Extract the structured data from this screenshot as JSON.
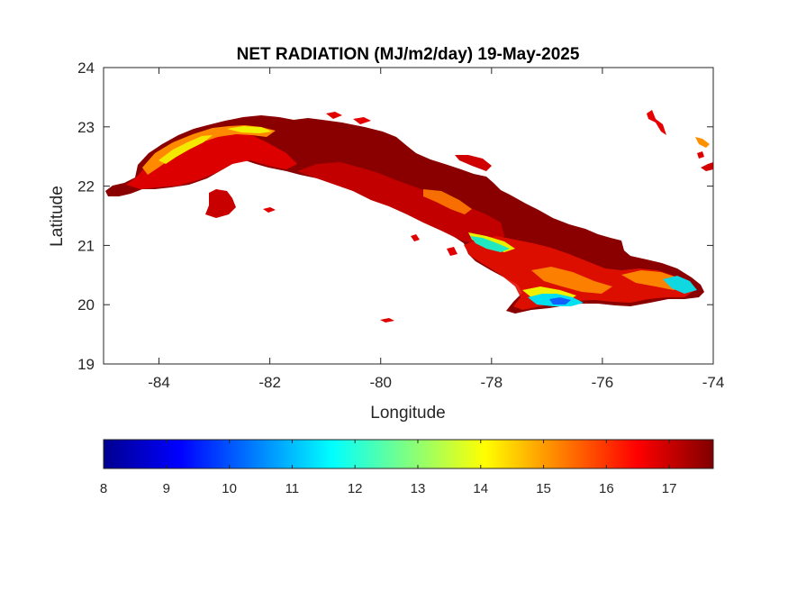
{
  "title": "NET RADIATION (MJ/m2/day) 19-May-2025",
  "x_axis": {
    "label": "Longitude",
    "range": [
      -85,
      -74
    ],
    "ticks": [
      -84,
      -82,
      -80,
      -78,
      -76,
      -74
    ],
    "tick_labels": [
      "-84",
      "-82",
      "-80",
      "-78",
      "-76",
      "-74"
    ]
  },
  "y_axis": {
    "label": "Latitude",
    "range": [
      19,
      24
    ],
    "ticks": [
      19,
      20,
      21,
      22,
      23,
      24
    ],
    "tick_labels": [
      "19",
      "20",
      "21",
      "22",
      "23",
      "24"
    ]
  },
  "colorbar": {
    "colormap": "jet",
    "range": [
      8,
      17.7
    ],
    "ticks": [
      8,
      9,
      10,
      11,
      12,
      13,
      14,
      15,
      16,
      17
    ],
    "tick_labels": [
      "8",
      "9",
      "10",
      "11",
      "12",
      "13",
      "14",
      "15",
      "16",
      "17"
    ]
  },
  "map": {
    "region": "Cuba",
    "dominant_value": 16.8,
    "colors": {
      "background": "#ffffff",
      "axes_box": "#262626",
      "dark_red": "#7f0000",
      "red": "#dd0000",
      "orange": "#ff8800",
      "yellow": "#f0f000",
      "cyan": "#00f0f0"
    }
  }
}
